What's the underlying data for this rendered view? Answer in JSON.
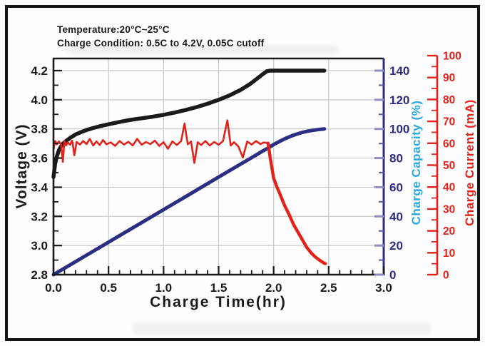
{
  "header": {
    "line1": "Temperature:20°C~25°C",
    "line2": "Charge Condition: 0.5C to 4.2V, 0.05C cutoff"
  },
  "colors": {
    "black": "#1a1a1a",
    "navy": "#2d2e83",
    "red": "#e32119",
    "cyan": "#29a9e0",
    "grid": "#c9c9c9",
    "tick_purple": "#8f8dc4"
  },
  "chart_data": {
    "type": "line",
    "title": "",
    "xlabel": "Charge Time(hr)",
    "grid": true,
    "legend": "none",
    "axes": {
      "x": {
        "label": "Charge Time(hr)",
        "range": [
          0.0,
          3.0
        ],
        "tick_labels": [
          "0.0",
          "0.5",
          "1.0",
          "1.5",
          "2.0",
          "2.5",
          "3.0"
        ],
        "minor_step": 0.1
      },
      "voltage": {
        "label": "Voltage (V)",
        "side": "left",
        "range": [
          2.8,
          4.2
        ],
        "tick_labels": [
          "2.8",
          "3.0",
          "3.2",
          "3.4",
          "3.6",
          "3.8",
          "4.0",
          "4.2"
        ],
        "minor_step": 0.1
      },
      "capacity": {
        "label": "Charge Capacity (%)",
        "side": "right",
        "range": [
          0,
          140
        ],
        "tick_labels": [
          "0",
          "20",
          "40",
          "60",
          "80",
          "100",
          "120",
          "140"
        ],
        "minor_step": 10
      },
      "current": {
        "label": "Charge Current (mA)",
        "side": "far-right",
        "range": [
          0,
          100
        ],
        "tick_labels": [
          "0",
          "10",
          "20",
          "30",
          "40",
          "50",
          "60",
          "70",
          "80",
          "90",
          "100"
        ],
        "minor_step": 5
      }
    },
    "series": [
      {
        "name": "Voltage",
        "yaxis": "voltage",
        "color": "#1a1a1a",
        "stroke_width": 5.5,
        "points": [
          [
            0,
            3.47
          ],
          [
            0.005,
            3.5
          ],
          [
            0.015,
            3.56
          ],
          [
            0.03,
            3.61
          ],
          [
            0.05,
            3.655
          ],
          [
            0.08,
            3.695
          ],
          [
            0.11,
            3.715
          ],
          [
            0.15,
            3.738
          ],
          [
            0.2,
            3.762
          ],
          [
            0.25,
            3.778
          ],
          [
            0.3,
            3.792
          ],
          [
            0.35,
            3.804
          ],
          [
            0.42,
            3.818
          ],
          [
            0.5,
            3.832
          ],
          [
            0.6,
            3.848
          ],
          [
            0.7,
            3.862
          ],
          [
            0.8,
            3.873
          ],
          [
            0.9,
            3.884
          ],
          [
            1.0,
            3.897
          ],
          [
            1.1,
            3.912
          ],
          [
            1.2,
            3.93
          ],
          [
            1.3,
            3.95
          ],
          [
            1.4,
            3.973
          ],
          [
            1.5,
            4.0
          ],
          [
            1.6,
            4.03
          ],
          [
            1.7,
            4.068
          ],
          [
            1.78,
            4.105
          ],
          [
            1.85,
            4.145
          ],
          [
            1.9,
            4.175
          ],
          [
            1.94,
            4.196
          ],
          [
            1.97,
            4.2
          ],
          [
            2.1,
            4.2
          ],
          [
            2.3,
            4.2
          ],
          [
            2.46,
            4.2
          ]
        ]
      },
      {
        "name": "Charge Capacity",
        "yaxis": "capacity",
        "color": "#2d2e83",
        "stroke_width": 5,
        "points": [
          [
            0,
            0
          ],
          [
            0.2,
            8.9
          ],
          [
            0.4,
            17.8
          ],
          [
            0.6,
            26.8
          ],
          [
            0.8,
            35.7
          ],
          [
            1.0,
            44.6
          ],
          [
            1.2,
            53.5
          ],
          [
            1.4,
            62.5
          ],
          [
            1.6,
            71.4
          ],
          [
            1.8,
            80.3
          ],
          [
            1.9,
            84.8
          ],
          [
            1.95,
            86.9
          ],
          [
            2.0,
            89.3
          ],
          [
            2.05,
            91.3
          ],
          [
            2.1,
            93.2
          ],
          [
            2.15,
            94.8
          ],
          [
            2.2,
            96.2
          ],
          [
            2.25,
            97.4
          ],
          [
            2.3,
            98.3
          ],
          [
            2.35,
            99.0
          ],
          [
            2.4,
            99.5
          ],
          [
            2.45,
            99.9
          ],
          [
            2.46,
            100
          ]
        ]
      },
      {
        "name": "Charge Current",
        "yaxis": "current",
        "color": "#e32119",
        "segments": [
          {
            "phase": "constant-current",
            "stroke_width": 2.6,
            "points": [
              [
                0,
                57
              ],
              [
                0.015,
                61
              ],
              [
                0.03,
                59.5
              ],
              [
                0.05,
                60.8
              ],
              [
                0.07,
                59.2
              ],
              [
                0.085,
                51.5
              ],
              [
                0.1,
                61
              ],
              [
                0.115,
                59
              ],
              [
                0.13,
                60.5
              ],
              [
                0.15,
                59.3
              ],
              [
                0.17,
                61.2
              ],
              [
                0.19,
                54.5
              ],
              [
                0.21,
                60.6
              ],
              [
                0.24,
                59.4
              ],
              [
                0.27,
                61
              ],
              [
                0.3,
                59.6
              ],
              [
                0.33,
                62
              ],
              [
                0.36,
                59
              ],
              [
                0.39,
                60.8
              ],
              [
                0.42,
                59.2
              ],
              [
                0.45,
                61.5
              ],
              [
                0.48,
                59.5
              ],
              [
                0.52,
                60.4
              ],
              [
                0.56,
                58.8
              ],
              [
                0.6,
                61
              ],
              [
                0.64,
                59.4
              ],
              [
                0.68,
                60.7
              ],
              [
                0.72,
                59
              ],
              [
                0.76,
                62
              ],
              [
                0.8,
                59.3
              ],
              [
                0.84,
                60.6
              ],
              [
                0.88,
                59.6
              ],
              [
                0.92,
                61.2
              ],
              [
                0.96,
                58.8
              ],
              [
                1.0,
                60.5
              ],
              [
                1.04,
                57.5
              ],
              [
                1.08,
                60.8
              ],
              [
                1.12,
                59.2
              ],
              [
                1.16,
                61
              ],
              [
                1.19,
                69
              ],
              [
                1.22,
                59.5
              ],
              [
                1.25,
                60.8
              ],
              [
                1.28,
                51
              ],
              [
                1.31,
                60.5
              ],
              [
                1.34,
                59.2
              ],
              [
                1.38,
                61
              ],
              [
                1.42,
                59
              ],
              [
                1.46,
                60.6
              ],
              [
                1.5,
                59.3
              ],
              [
                1.54,
                61
              ],
              [
                1.58,
                70.5
              ],
              [
                1.61,
                59
              ],
              [
                1.64,
                60.5
              ],
              [
                1.68,
                58.5
              ],
              [
                1.72,
                53.5
              ],
              [
                1.76,
                60.8
              ],
              [
                1.8,
                59.4
              ],
              [
                1.84,
                61
              ],
              [
                1.88,
                59.6
              ],
              [
                1.91,
                60.4
              ],
              [
                1.95,
                60
              ]
            ]
          },
          {
            "phase": "taper",
            "stroke_width": 4.4,
            "points": [
              [
                1.95,
                60
              ],
              [
                1.97,
                53
              ],
              [
                2.0,
                44
              ],
              [
                2.03,
                40
              ],
              [
                2.06,
                36.5
              ],
              [
                2.1,
                31.5
              ],
              [
                2.14,
                27.5
              ],
              [
                2.18,
                23
              ],
              [
                2.22,
                19.5
              ],
              [
                2.26,
                16
              ],
              [
                2.3,
                12.5
              ],
              [
                2.34,
                10
              ],
              [
                2.38,
                8
              ],
              [
                2.42,
                6.5
              ],
              [
                2.45,
                5.5
              ],
              [
                2.47,
                5
              ]
            ]
          }
        ]
      }
    ]
  }
}
